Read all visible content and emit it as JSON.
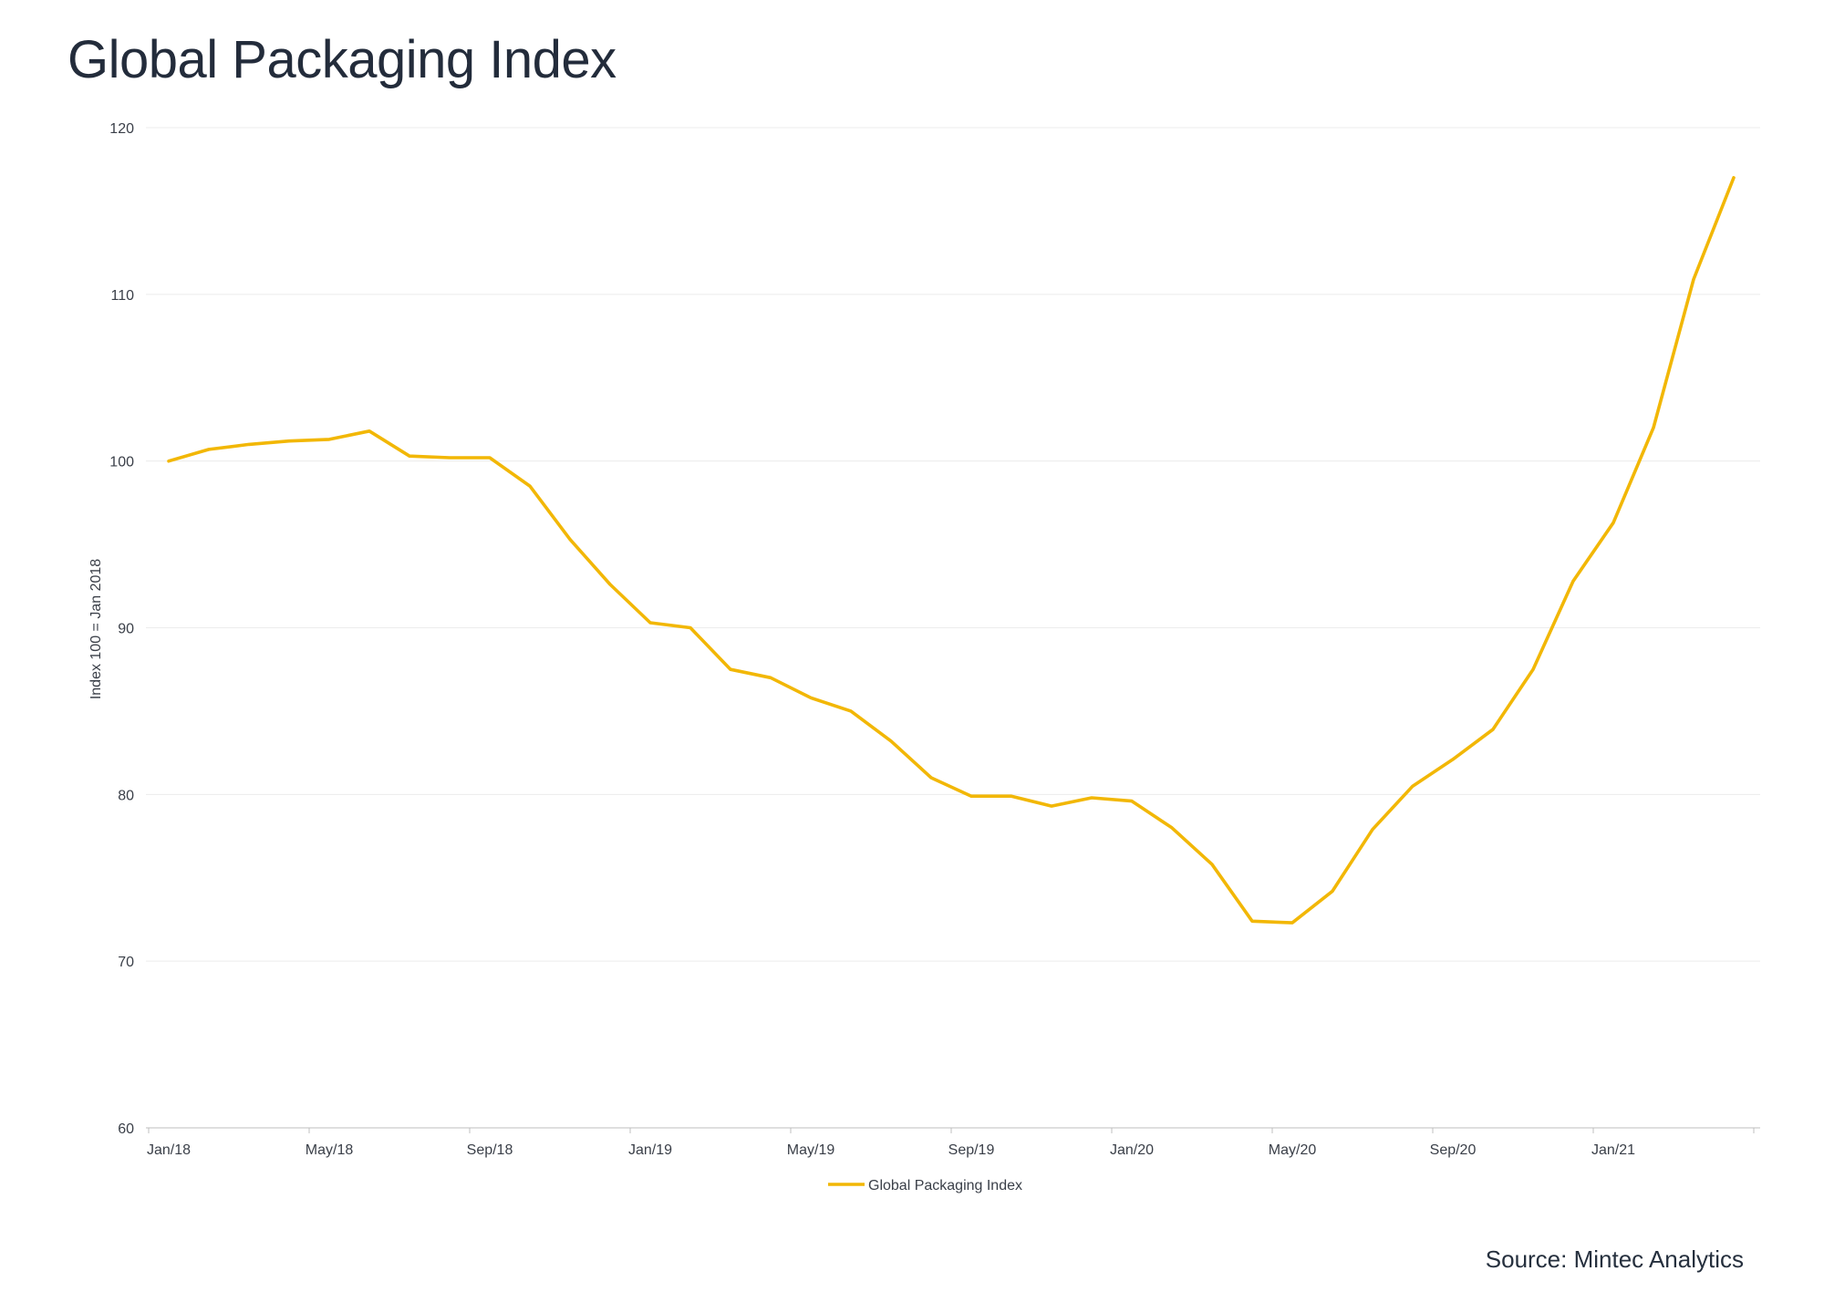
{
  "header": {
    "title": "Global Packaging Index"
  },
  "footer": {
    "source": "Source: Mintec Analytics"
  },
  "colors": {
    "series": "#F2B705",
    "grid": "#ececec",
    "text": "#26303e"
  },
  "chart_data": {
    "type": "line",
    "title": "Global Packaging Index",
    "xlabel": "",
    "ylabel": "Index 100 = Jan 2018",
    "ylim": [
      60,
      120
    ],
    "yticks": [
      60,
      70,
      80,
      90,
      100,
      110,
      120
    ],
    "grid": true,
    "legend_position": "bottom-center",
    "x_tick_labels": [
      "Jan/18",
      "May/18",
      "Sep/18",
      "Jan/19",
      "May/19",
      "Sep/19",
      "Jan/20",
      "May/20",
      "Sep/20",
      "Jan/21"
    ],
    "x_tick_every": 4,
    "x": [
      "Jan/18",
      "Feb/18",
      "Mar/18",
      "Apr/18",
      "May/18",
      "Jun/18",
      "Jul/18",
      "Aug/18",
      "Sep/18",
      "Oct/18",
      "Nov/18",
      "Dec/18",
      "Jan/19",
      "Feb/19",
      "Mar/19",
      "Apr/19",
      "May/19",
      "Jun/19",
      "Jul/19",
      "Aug/19",
      "Sep/19",
      "Oct/19",
      "Nov/19",
      "Dec/19",
      "Jan/20",
      "Feb/20",
      "Mar/20",
      "Apr/20",
      "May/20",
      "Jun/20",
      "Jul/20",
      "Aug/20",
      "Sep/20",
      "Oct/20",
      "Nov/20",
      "Dec/20",
      "Jan/21",
      "Feb/21",
      "Mar/21",
      "Apr/21"
    ],
    "series": [
      {
        "name": "Global Packaging Index",
        "values": [
          100.0,
          100.7,
          101.0,
          101.2,
          101.3,
          101.8,
          100.3,
          100.2,
          100.2,
          98.5,
          95.3,
          92.6,
          90.3,
          90.0,
          87.5,
          87.0,
          85.8,
          85.0,
          83.2,
          81.0,
          79.9,
          79.9,
          79.3,
          79.8,
          79.6,
          78.0,
          75.8,
          72.4,
          72.3,
          74.2,
          77.9,
          80.5,
          82.1,
          83.9,
          87.5,
          92.8,
          96.3,
          102.0,
          110.9,
          117.0
        ]
      }
    ]
  }
}
